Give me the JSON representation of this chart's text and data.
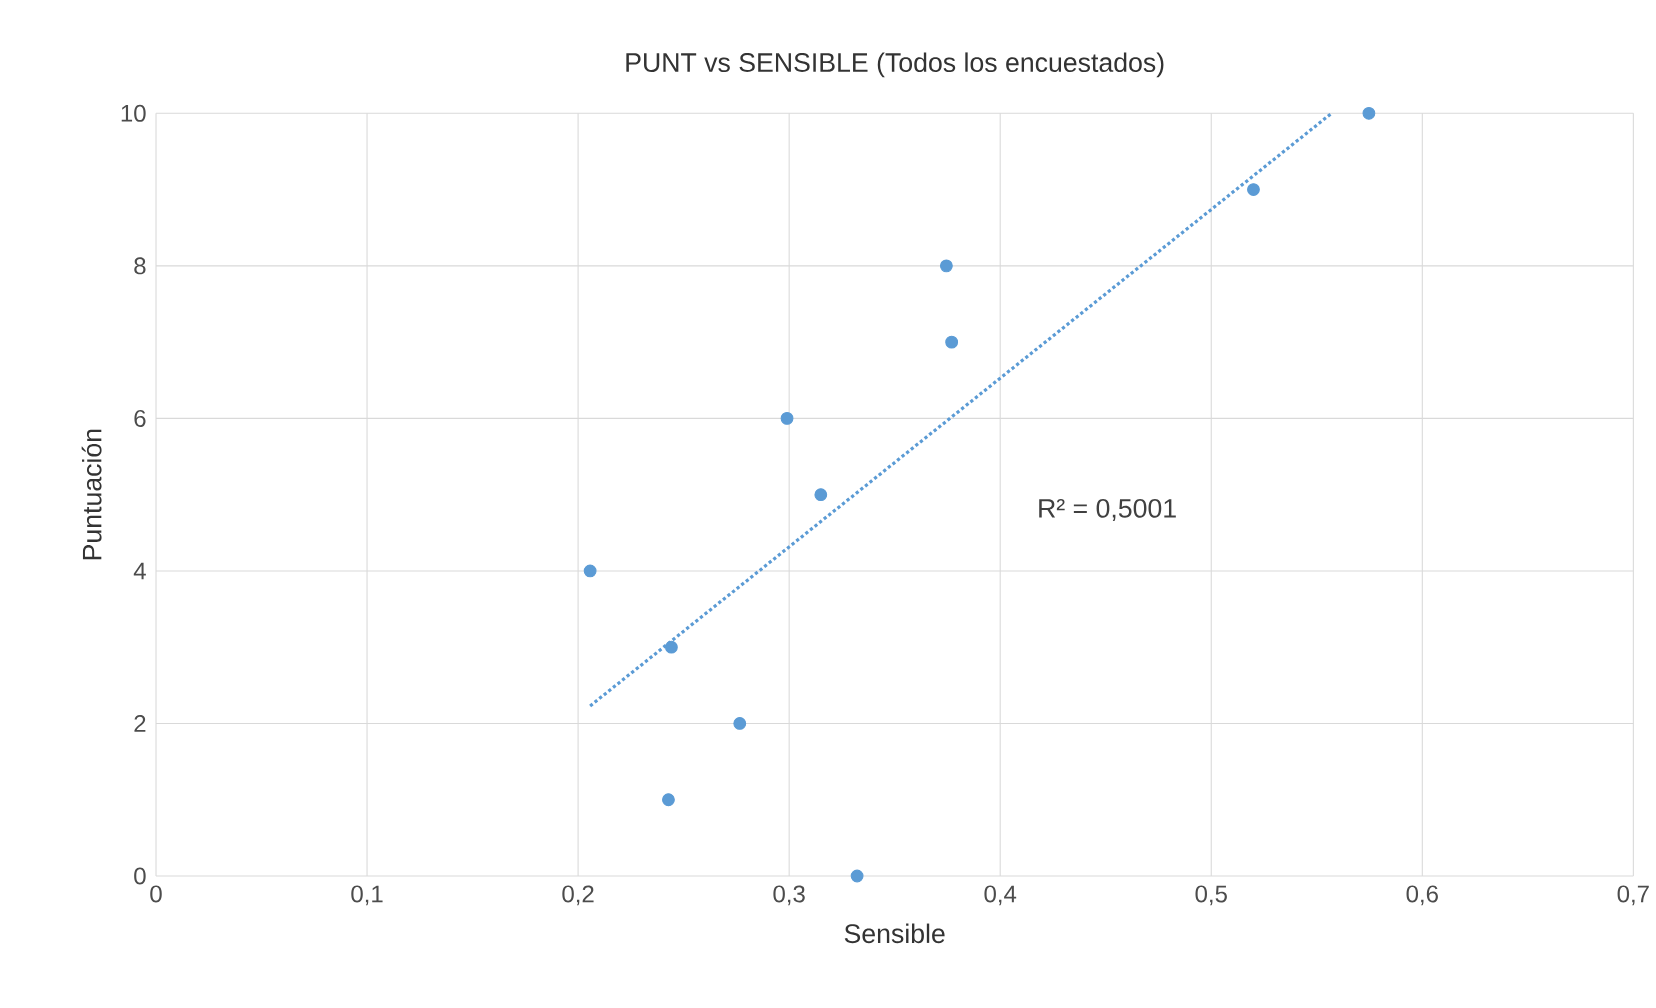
{
  "chart_data": {
    "type": "scatter",
    "title": "PUNT vs SENSIBLE (Todos los encuestados)",
    "xlabel": "Sensible",
    "ylabel": "Puntuación",
    "series": [
      {
        "color": "#5b9bd5",
        "marker": "circle",
        "x": [
          0.2057,
          0.2442,
          0.2428,
          0.2766,
          0.299,
          0.315,
          0.3322,
          0.3745,
          0.377,
          0.52,
          0.5747
        ],
        "values": [
          4,
          3,
          1,
          2,
          6,
          5,
          0,
          8,
          7,
          9,
          10
        ]
      },
      {
        "type": "line",
        "color": "#5b9bd5",
        "line_style": "dotted",
        "marker": "none",
        "x": [
          0.2057,
          0.557
        ],
        "values": [
          2.23,
          10
        ]
      }
    ],
    "annotations": [
      "R² = 0,5001"
    ],
    "xlim": [
      0,
      0.7
    ],
    "ylim": [
      0,
      10
    ],
    "xticks": [
      0,
      {
        "value": 0.1,
        "label": "0,1"
      },
      {
        "value": 0.2,
        "label": "0,2"
      },
      {
        "value": 0.3,
        "label": "0,3"
      },
      {
        "value": 0.4,
        "label": "0,4"
      },
      {
        "value": 0.5,
        "label": "0,5"
      },
      {
        "value": 0.6,
        "label": "0,6"
      },
      {
        "value": 0.7,
        "label": "0,7"
      }
    ],
    "yticks": [
      0,
      2,
      4,
      6,
      8,
      10
    ],
    "grid": true
  }
}
